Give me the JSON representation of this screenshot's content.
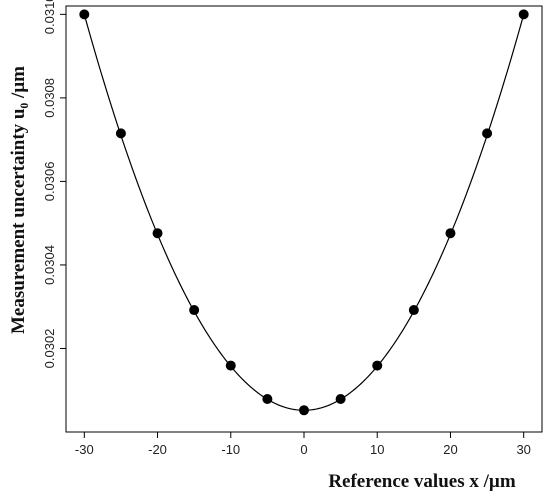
{
  "chart_data": {
    "type": "scatter",
    "title": "",
    "xlabel": "Reference values  x /µm",
    "ylabel": "Measurement uncertainty u₀ /µm",
    "xlim": [
      -32.5,
      32.5
    ],
    "ylim": [
      0.03,
      0.03102
    ],
    "x_ticks": [
      -30,
      -20,
      -10,
      0,
      10,
      20,
      30
    ],
    "x_tick_labels": [
      "-30",
      "-20",
      "-10",
      "0",
      "10",
      "20",
      "30"
    ],
    "y_ticks": [
      0.0302,
      0.0304,
      0.0306,
      0.0308,
      0.031
    ],
    "y_tick_labels": [
      "0.0302",
      "0.0304",
      "0.0306",
      "0.0308",
      "0.0310"
    ],
    "grid": false,
    "legend": "none",
    "marker_color": "#000000",
    "series": [
      {
        "x": [
          -30,
          -25,
          -20,
          -15,
          -10,
          -5,
          0,
          5,
          10,
          15,
          20,
          25,
          30
        ],
        "y": [
          0.031,
          0.030715,
          0.030476,
          0.030292,
          0.030159,
          0.030079,
          0.030052,
          0.030079,
          0.030159,
          0.030292,
          0.030476,
          0.030715,
          0.031
        ]
      }
    ],
    "fit_curve": {
      "type": "quadratic",
      "y0": 0.030052,
      "a": 1.053e-06
    }
  }
}
